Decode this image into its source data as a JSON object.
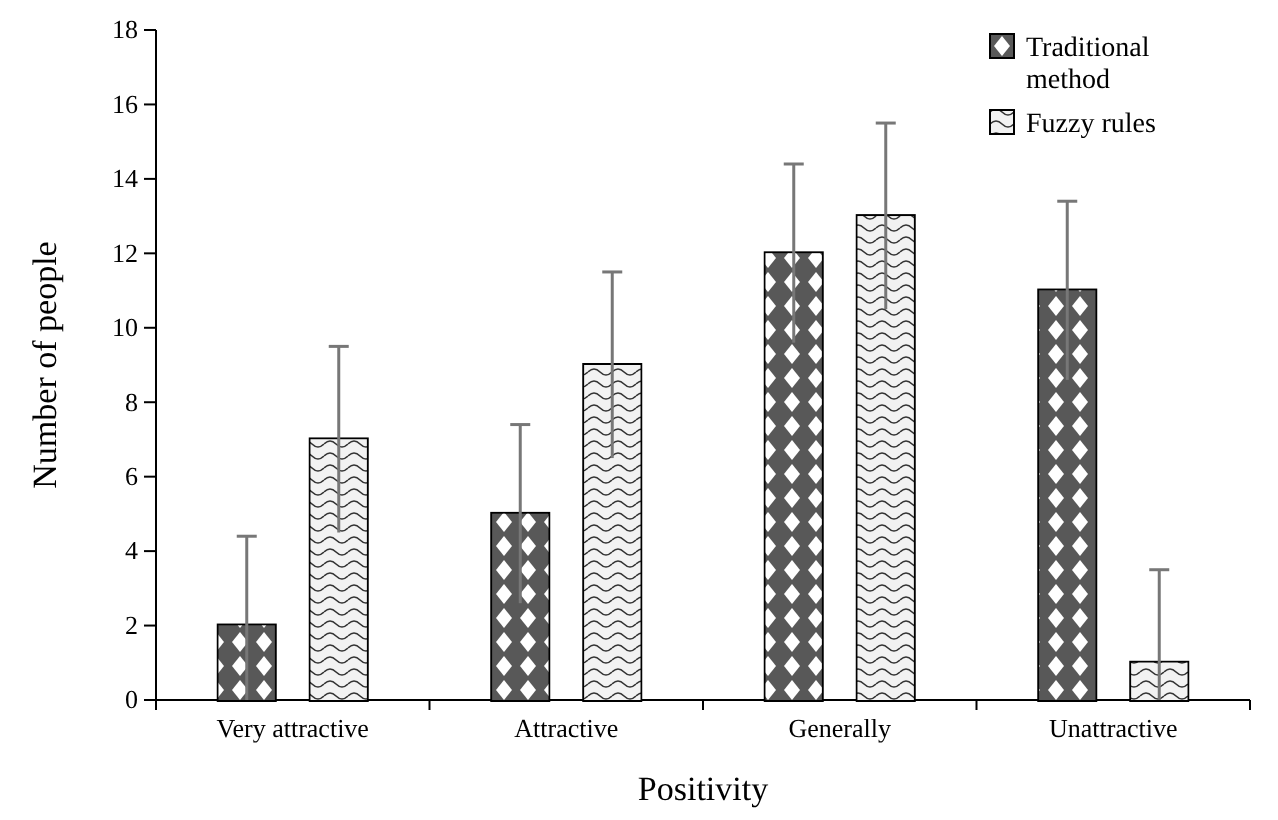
{
  "chart_data": {
    "type": "bar",
    "xlabel": "Positivity",
    "ylabel": "Number of people",
    "categories": [
      "Very attractive",
      "Attractive",
      "Generally",
      "Unattractive"
    ],
    "series": [
      {
        "name": "Traditional method",
        "color": "#595959",
        "values": [
          2,
          5,
          12,
          11
        ],
        "errors": [
          [
            0,
            4.4
          ],
          2.4,
          2.4,
          2.4
        ]
      },
      {
        "name": "Fuzzy rules",
        "color": "#f2f2f2",
        "values": [
          7,
          9,
          13,
          1
        ],
        "errors": [
          2.5,
          2.5,
          2.5,
          [
            0,
            3.5
          ]
        ]
      }
    ],
    "ylim": [
      0,
      18
    ],
    "yticks": [
      0,
      2,
      4,
      6,
      8,
      10,
      12,
      14,
      16,
      18
    ],
    "grid": false,
    "legend": "top right"
  }
}
